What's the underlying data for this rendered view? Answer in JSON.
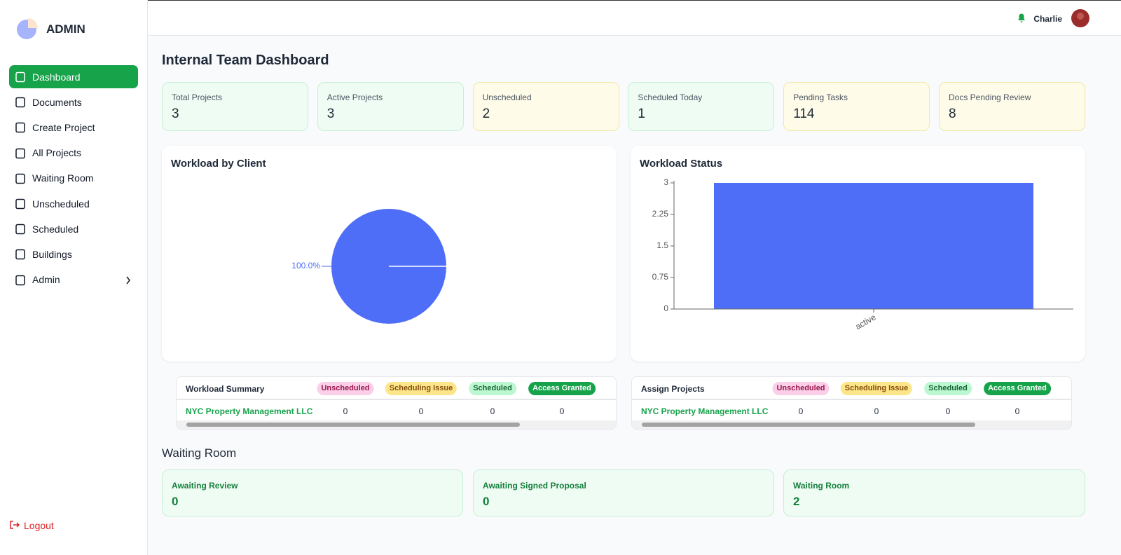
{
  "sidebar": {
    "brand": "ADMIN",
    "nav": [
      "Dashboard",
      "Documents",
      "Create Project",
      "All Projects",
      "Waiting Room",
      "Unscheduled",
      "Scheduled",
      "Buildings",
      "Admin"
    ],
    "active": 0,
    "logout": "Logout"
  },
  "header": {
    "user": "Charlie"
  },
  "page_title": "Internal Team Dashboard",
  "stats": [
    {
      "label": "Total Projects",
      "value": 3,
      "tone": "green"
    },
    {
      "label": "Active Projects",
      "value": 3,
      "tone": "green"
    },
    {
      "label": "Unscheduled",
      "value": 2,
      "tone": "yellow"
    },
    {
      "label": "Scheduled Today",
      "value": 1,
      "tone": "green"
    },
    {
      "label": "Pending Tasks",
      "value": 114,
      "tone": "yellow"
    },
    {
      "label": "Docs Pending Review",
      "value": 8,
      "tone": "yellow"
    }
  ],
  "chart_data": [
    {
      "type": "pie",
      "title": "Workload by Client",
      "values": [
        100
      ],
      "value_labels": [
        "100.0%"
      ],
      "color": "#4f6ef7"
    },
    {
      "type": "bar",
      "title": "Workload Status",
      "categories": [
        "active"
      ],
      "values": [
        3
      ],
      "color": "#4f6ef7",
      "ylim": [
        0,
        3
      ],
      "yticks": [
        0,
        0.75,
        1.5,
        2.25,
        3
      ]
    }
  ],
  "tables": [
    {
      "title": "Workload Summary",
      "columns": [
        "Unscheduled",
        "Scheduling Issue",
        "Scheduled",
        "Access Granted"
      ],
      "rows": [
        [
          "NYC Property Management LLC",
          0,
          0,
          0,
          0
        ]
      ]
    },
    {
      "title": "Assign Projects",
      "columns": [
        "Unscheduled",
        "Scheduling Issue",
        "Scheduled",
        "Access Granted"
      ],
      "rows": [
        [
          "NYC Property Management LLC",
          0,
          0,
          0,
          0
        ]
      ]
    }
  ],
  "waiting_room": {
    "title": "Waiting Room",
    "cards": [
      {
        "label": "Awaiting Review",
        "value": 0
      },
      {
        "label": "Awaiting Signed Proposal",
        "value": 0
      },
      {
        "label": "Waiting Room",
        "value": 2
      }
    ]
  }
}
